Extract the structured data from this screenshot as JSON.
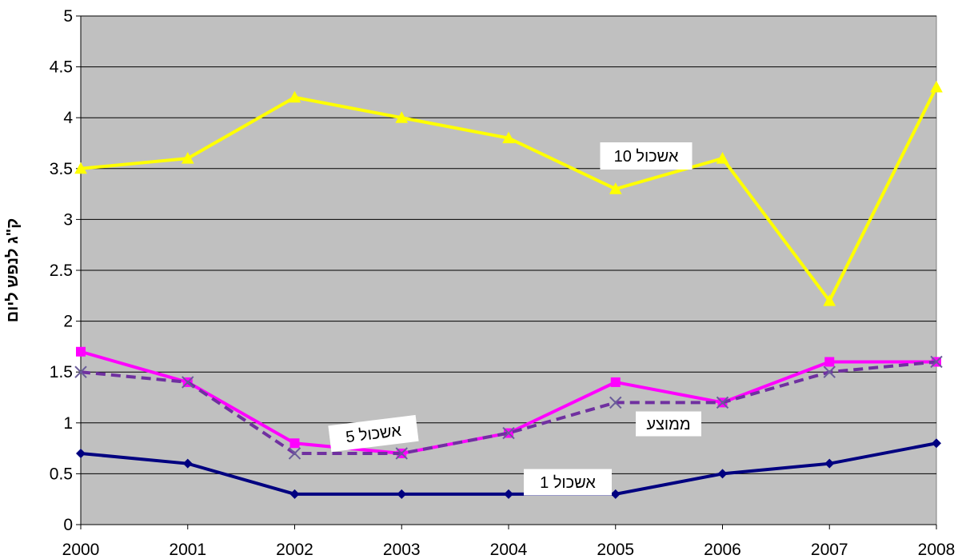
{
  "chart_data": {
    "type": "line",
    "title": "",
    "xlabel": "",
    "ylabel": "ק\"ג לנפש ליום",
    "categories": [
      "2000",
      "2001",
      "2002",
      "2003",
      "2004",
      "2005",
      "2006",
      "2007",
      "2008"
    ],
    "ylim": [
      0,
      5
    ],
    "yticks": [
      "0",
      "0.5",
      "1",
      "1.5",
      "2",
      "2.5",
      "3",
      "3.5",
      "4",
      "4.5",
      "5"
    ],
    "grid": true,
    "legend": "none",
    "plot_background": "#c0c0c0",
    "series": [
      {
        "name": "אשכול 10",
        "values": [
          3.5,
          3.6,
          4.2,
          4.0,
          3.8,
          3.3,
          3.6,
          2.2,
          4.3
        ],
        "color": "#ffff00",
        "marker": "triangle",
        "dash": false
      },
      {
        "name": "אשכול 5",
        "values": [
          1.7,
          1.4,
          0.8,
          0.7,
          0.9,
          1.4,
          1.2,
          1.6,
          1.6
        ],
        "color": "#ff00ff",
        "marker": "square",
        "dash": false
      },
      {
        "name": "ממוצע",
        "values": [
          1.5,
          1.4,
          0.7,
          0.7,
          0.9,
          1.2,
          1.2,
          1.5,
          1.6
        ],
        "color": "#7030a0",
        "marker": "x",
        "dash": true
      },
      {
        "name": "אשכול 1",
        "values": [
          0.7,
          0.6,
          0.3,
          0.3,
          0.3,
          0.3,
          0.5,
          0.6,
          0.8
        ],
        "color": "#000080",
        "marker": "diamond",
        "dash": false
      }
    ]
  }
}
